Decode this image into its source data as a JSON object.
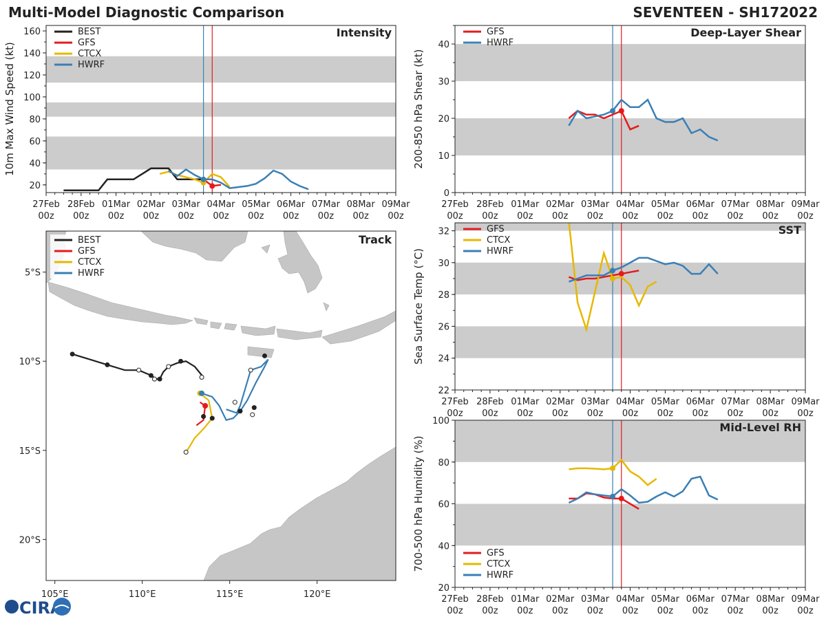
{
  "figure": {
    "title_left": "Multi-Model Diagnostic Comparison",
    "title_right": "SEVENTEEN - SH172022",
    "logo_text": "CIRA"
  },
  "colors": {
    "BEST": "#222222",
    "GFS": "#e41a1c",
    "CTCX": "#e6b800",
    "HWRF": "#3a7fb5",
    "band": "#cccccc"
  },
  "chart_data": [
    {
      "id": "intensity",
      "type": "line",
      "title": "Intensity",
      "ylabel": "10m Max Wind Speed (kt)",
      "xlabel": "",
      "x_range": [
        0,
        10
      ],
      "ylim": [
        13,
        165
      ],
      "yticks": [
        20,
        40,
        60,
        80,
        100,
        120,
        140,
        160
      ],
      "x_ticks": [
        "27Feb\n00z",
        "28Feb\n00z",
        "01Mar\n00z",
        "02Mar\n00z",
        "03Mar\n00z",
        "04Mar\n00z",
        "05Mar\n00z",
        "06Mar\n00z",
        "07Mar\n00z",
        "08Mar\n00z",
        "09Mar\n00z"
      ],
      "bands": [
        [
          34,
          64
        ],
        [
          82,
          95
        ],
        [
          113,
          137
        ]
      ],
      "vlines": [
        {
          "x": 4.5,
          "color": "#3a7fb5"
        },
        {
          "x": 4.75,
          "color": "#e41a1c"
        }
      ],
      "legend": [
        "BEST",
        "GFS",
        "CTCX",
        "HWRF"
      ],
      "series": [
        {
          "name": "BEST",
          "x": [
            0.5,
            0.75,
            1,
            1.25,
            1.5,
            1.75,
            2,
            2.25,
            2.5,
            2.75,
            3,
            3.25,
            3.5,
            3.75,
            4,
            4.25,
            4.5
          ],
          "y": [
            15,
            15,
            15,
            15,
            15,
            25,
            25,
            25,
            25,
            30,
            35,
            35,
            35,
            25,
            25,
            25,
            25
          ]
        },
        {
          "name": "GFS",
          "x": [
            4.5,
            4.75,
            5.0
          ],
          "y": [
            25,
            19,
            20
          ],
          "marker_x": 4.75,
          "marker_y": 19
        },
        {
          "name": "CTCX",
          "x": [
            3.25,
            3.5,
            3.75,
            4.0,
            4.25,
            4.5,
            4.75,
            5.0,
            5.25
          ],
          "y": [
            30,
            32,
            29,
            27,
            25,
            22,
            30,
            27,
            18
          ],
          "marker_x": 4.5,
          "marker_y": 22
        },
        {
          "name": "HWRF",
          "x": [
            3.5,
            3.75,
            4.0,
            4.25,
            4.5,
            4.75,
            5.0,
            5.25,
            5.5,
            5.75,
            6.0,
            6.25,
            6.5,
            6.75,
            7.0,
            7.25,
            7.5
          ],
          "y": [
            33,
            28,
            34,
            29,
            25,
            25,
            22,
            17,
            18,
            19,
            21,
            26,
            33,
            30,
            23,
            19,
            16
          ],
          "marker_x": 4.5,
          "marker_y": 25
        }
      ]
    },
    {
      "id": "shear",
      "type": "line",
      "title": "Deep-Layer Shear",
      "ylabel": "200-850 hPa Shear (kt)",
      "xlabel": "",
      "x_range": [
        0,
        10
      ],
      "ylim": [
        0,
        45
      ],
      "yticks": [
        0,
        10,
        20,
        30,
        40
      ],
      "x_ticks": [
        "27Feb\n00z",
        "28Feb\n00z",
        "01Mar\n00z",
        "02Mar\n00z",
        "03Mar\n00z",
        "04Mar\n00z",
        "05Mar\n00z",
        "06Mar\n00z",
        "07Mar\n00z",
        "08Mar\n00z",
        "09Mar\n00z"
      ],
      "bands": [
        [
          10,
          20
        ],
        [
          30,
          40
        ]
      ],
      "vlines": [
        {
          "x": 4.5,
          "color": "#3a7fb5"
        },
        {
          "x": 4.75,
          "color": "#e41a1c"
        }
      ],
      "legend": [
        "GFS",
        "HWRF"
      ],
      "series": [
        {
          "name": "GFS",
          "x": [
            3.25,
            3.5,
            3.75,
            4.0,
            4.25,
            4.5,
            4.75,
            5.0,
            5.25
          ],
          "y": [
            20,
            22,
            21,
            21,
            20,
            21,
            22,
            17,
            18
          ],
          "marker_x": 4.75,
          "marker_y": 22
        },
        {
          "name": "HWRF",
          "x": [
            3.25,
            3.5,
            3.75,
            4.0,
            4.25,
            4.5,
            4.75,
            5.0,
            5.25,
            5.5,
            5.75,
            6.0,
            6.25,
            6.5,
            6.75,
            7.0,
            7.25,
            7.5
          ],
          "y": [
            18,
            22,
            20,
            20.5,
            21,
            22,
            25,
            23,
            23,
            25,
            20,
            19,
            19,
            20,
            16,
            17,
            15,
            14
          ],
          "marker_x": 4.5,
          "marker_y": 22
        }
      ]
    },
    {
      "id": "sst",
      "type": "line",
      "title": "SST",
      "ylabel": "Sea Surface Temp (°C)",
      "xlabel": "",
      "x_range": [
        0,
        10
      ],
      "ylim": [
        22,
        32.5
      ],
      "yticks": [
        22,
        24,
        26,
        28,
        30,
        32
      ],
      "x_ticks": [
        "27Feb\n00z",
        "28Feb\n00z",
        "01Mar\n00z",
        "02Mar\n00z",
        "03Mar\n00z",
        "04Mar\n00z",
        "05Mar\n00z",
        "06Mar\n00z",
        "07Mar\n00z",
        "08Mar\n00z",
        "09Mar\n00z"
      ],
      "bands": [
        [
          24,
          26
        ],
        [
          28,
          30
        ],
        [
          32,
          32.5
        ]
      ],
      "vlines": [
        {
          "x": 4.5,
          "color": "#3a7fb5"
        },
        {
          "x": 4.75,
          "color": "#e41a1c"
        }
      ],
      "legend": [
        "GFS",
        "CTCX",
        "HWRF"
      ],
      "series": [
        {
          "name": "GFS",
          "x": [
            3.25,
            3.5,
            3.75,
            4.0,
            4.25,
            4.5,
            4.75,
            5.0,
            5.25
          ],
          "y": [
            29.1,
            28.9,
            29.0,
            29.0,
            29.1,
            29.2,
            29.3,
            29.4,
            29.5
          ],
          "marker_x": 4.75,
          "marker_y": 29.3
        },
        {
          "name": "CTCX",
          "x": [
            3.25,
            3.5,
            3.75,
            4.0,
            4.25,
            4.5,
            4.75,
            5.0,
            5.25,
            5.5,
            5.75
          ],
          "y": [
            32.6,
            27.5,
            25.8,
            28.2,
            30.6,
            29.0,
            29.1,
            28.6,
            27.3,
            28.5,
            28.8
          ],
          "marker_x": 4.5,
          "marker_y": 29.0
        },
        {
          "name": "HWRF",
          "x": [
            3.25,
            3.5,
            3.75,
            4.0,
            4.25,
            4.5,
            4.75,
            5.0,
            5.25,
            5.5,
            5.75,
            6.0,
            6.25,
            6.5,
            6.75,
            7.0,
            7.25,
            7.5
          ],
          "y": [
            28.8,
            29.0,
            29.2,
            29.2,
            29.2,
            29.5,
            29.7,
            30.0,
            30.3,
            30.3,
            30.1,
            29.9,
            30.0,
            29.8,
            29.3,
            29.3,
            29.9,
            29.3
          ],
          "marker_x": 4.5,
          "marker_y": 29.5
        }
      ]
    },
    {
      "id": "rh",
      "type": "line",
      "title": "Mid-Level RH",
      "ylabel": "700-500 hPa Humidity (%)",
      "xlabel": "",
      "x_range": [
        0,
        10
      ],
      "ylim": [
        20,
        100
      ],
      "yticks": [
        20,
        40,
        60,
        80,
        100
      ],
      "x_ticks": [
        "27Feb\n00z",
        "28Feb\n00z",
        "01Mar\n00z",
        "02Mar\n00z",
        "03Mar\n00z",
        "04Mar\n00z",
        "05Mar\n00z",
        "06Mar\n00z",
        "07Mar\n00z",
        "08Mar\n00z",
        "09Mar\n00z"
      ],
      "bands": [
        [
          40,
          60
        ],
        [
          80,
          100
        ]
      ],
      "vlines": [
        {
          "x": 4.5,
          "color": "#3a7fb5"
        },
        {
          "x": 4.75,
          "color": "#e41a1c"
        }
      ],
      "legend": [
        "GFS",
        "CTCX",
        "HWRF"
      ],
      "legend_pos": "bottom-left",
      "series": [
        {
          "name": "GFS",
          "x": [
            3.25,
            3.5,
            3.75,
            4.0,
            4.25,
            4.5,
            4.75,
            5.0,
            5.25
          ],
          "y": [
            62.5,
            62.5,
            65,
            64.5,
            63,
            62.5,
            62.5,
            60,
            57.5
          ],
          "marker_x": 4.75,
          "marker_y": 62.5
        },
        {
          "name": "CTCX",
          "x": [
            3.25,
            3.5,
            3.75,
            4.0,
            4.25,
            4.5,
            4.75,
            5.0,
            5.25,
            5.5,
            5.75
          ],
          "y": [
            76.5,
            77,
            77,
            76.8,
            76.5,
            77,
            81,
            75.5,
            73,
            69,
            72
          ],
          "marker_x": 4.5,
          "marker_y": 77
        },
        {
          "name": "HWRF",
          "x": [
            3.25,
            3.5,
            3.75,
            4.0,
            4.25,
            4.5,
            4.75,
            5.0,
            5.25,
            5.5,
            5.75,
            6.0,
            6.25,
            6.5,
            6.75,
            7.0,
            7.25,
            7.5
          ],
          "y": [
            60.5,
            62.5,
            65.5,
            64.5,
            64,
            63.5,
            67,
            64,
            60.5,
            61,
            63.5,
            65.5,
            63.5,
            66,
            72,
            73,
            64,
            62
          ],
          "marker_x": 4.5,
          "marker_y": 63.5
        }
      ]
    },
    {
      "id": "track",
      "type": "scatter",
      "title": "Track",
      "xlim": [
        104.5,
        124.5
      ],
      "ylim": [
        -22.3,
        -2.7
      ],
      "x_ticks": [
        {
          "v": 105,
          "label": "105°E"
        },
        {
          "v": 110,
          "label": "110°E"
        },
        {
          "v": 115,
          "label": "115°E"
        },
        {
          "v": 120,
          "label": "120°E"
        }
      ],
      "y_ticks": [
        {
          "v": -5,
          "label": "5°S"
        },
        {
          "v": -10,
          "label": "10°S"
        },
        {
          "v": -15,
          "label": "15°S"
        },
        {
          "v": -20,
          "label": "20°S"
        }
      ],
      "legend": [
        "BEST",
        "GFS",
        "CTCX",
        "HWRF"
      ],
      "tracks": [
        {
          "name": "BEST",
          "lon": [
            106.0,
            107.0,
            108.0,
            109.0,
            109.8,
            110.5,
            110.8,
            111.0,
            111.2,
            111.5,
            112.0,
            112.5,
            113.0,
            113.5
          ],
          "lat": [
            -9.6,
            -9.9,
            -10.2,
            -10.5,
            -10.5,
            -10.8,
            -11.0,
            -11.0,
            -10.6,
            -10.3,
            -10.1,
            -10.0,
            -10.3,
            -10.9
          ],
          "filled": [
            0,
            2,
            4,
            6
          ],
          "open": [
            4,
            5,
            10,
            13
          ]
        },
        {
          "name": "GFS",
          "lon": [
            113.3,
            113.6,
            113.5,
            113.1
          ],
          "lat": [
            -12.3,
            -12.5,
            -13.3,
            -13.6
          ],
          "marker_lon": 113.6,
          "marker_lat": -12.5
        },
        {
          "name": "CTCX",
          "lon": [
            113.3,
            113.8,
            114.0,
            113.5,
            113.0,
            112.7,
            112.5
          ],
          "lat": [
            -11.8,
            -12.2,
            -13.2,
            -13.8,
            -14.3,
            -14.8,
            -15.1
          ],
          "marker_lon": 113.3,
          "marker_lat": -11.8
        },
        {
          "name": "HWRF",
          "lon": [
            113.4,
            114.0,
            114.4,
            114.8,
            115.2,
            115.6,
            116.0,
            116.5,
            117.0,
            117.2,
            116.8,
            116.2,
            115.6,
            115.4,
            114.8
          ],
          "lat": [
            -11.8,
            -12.0,
            -12.5,
            -13.3,
            -13.2,
            -12.8,
            -12.2,
            -11.2,
            -10.3,
            -9.9,
            -10.3,
            -10.5,
            -12.5,
            -12.9,
            -12.7
          ],
          "marker_lon": 113.4,
          "marker_lat": -11.8
        }
      ],
      "best_points_filled": [
        [
          106.0,
          -9.6
        ],
        [
          108.0,
          -10.2
        ],
        [
          110.5,
          -10.8
        ],
        [
          111.0,
          -11.0
        ],
        [
          112.2,
          -10.0
        ],
        [
          113.5,
          -13.1
        ],
        [
          114.0,
          -13.2
        ],
        [
          115.6,
          -12.8
        ],
        [
          116.4,
          -12.6
        ],
        [
          117.0,
          -9.7
        ]
      ],
      "best_points_open": [
        [
          109.8,
          -10.5
        ],
        [
          110.7,
          -11.0
        ],
        [
          111.5,
          -10.3
        ],
        [
          113.4,
          -10.9
        ],
        [
          112.5,
          -15.1
        ],
        [
          115.3,
          -12.3
        ],
        [
          116.3,
          -13.0
        ],
        [
          116.2,
          -10.5
        ]
      ]
    }
  ]
}
